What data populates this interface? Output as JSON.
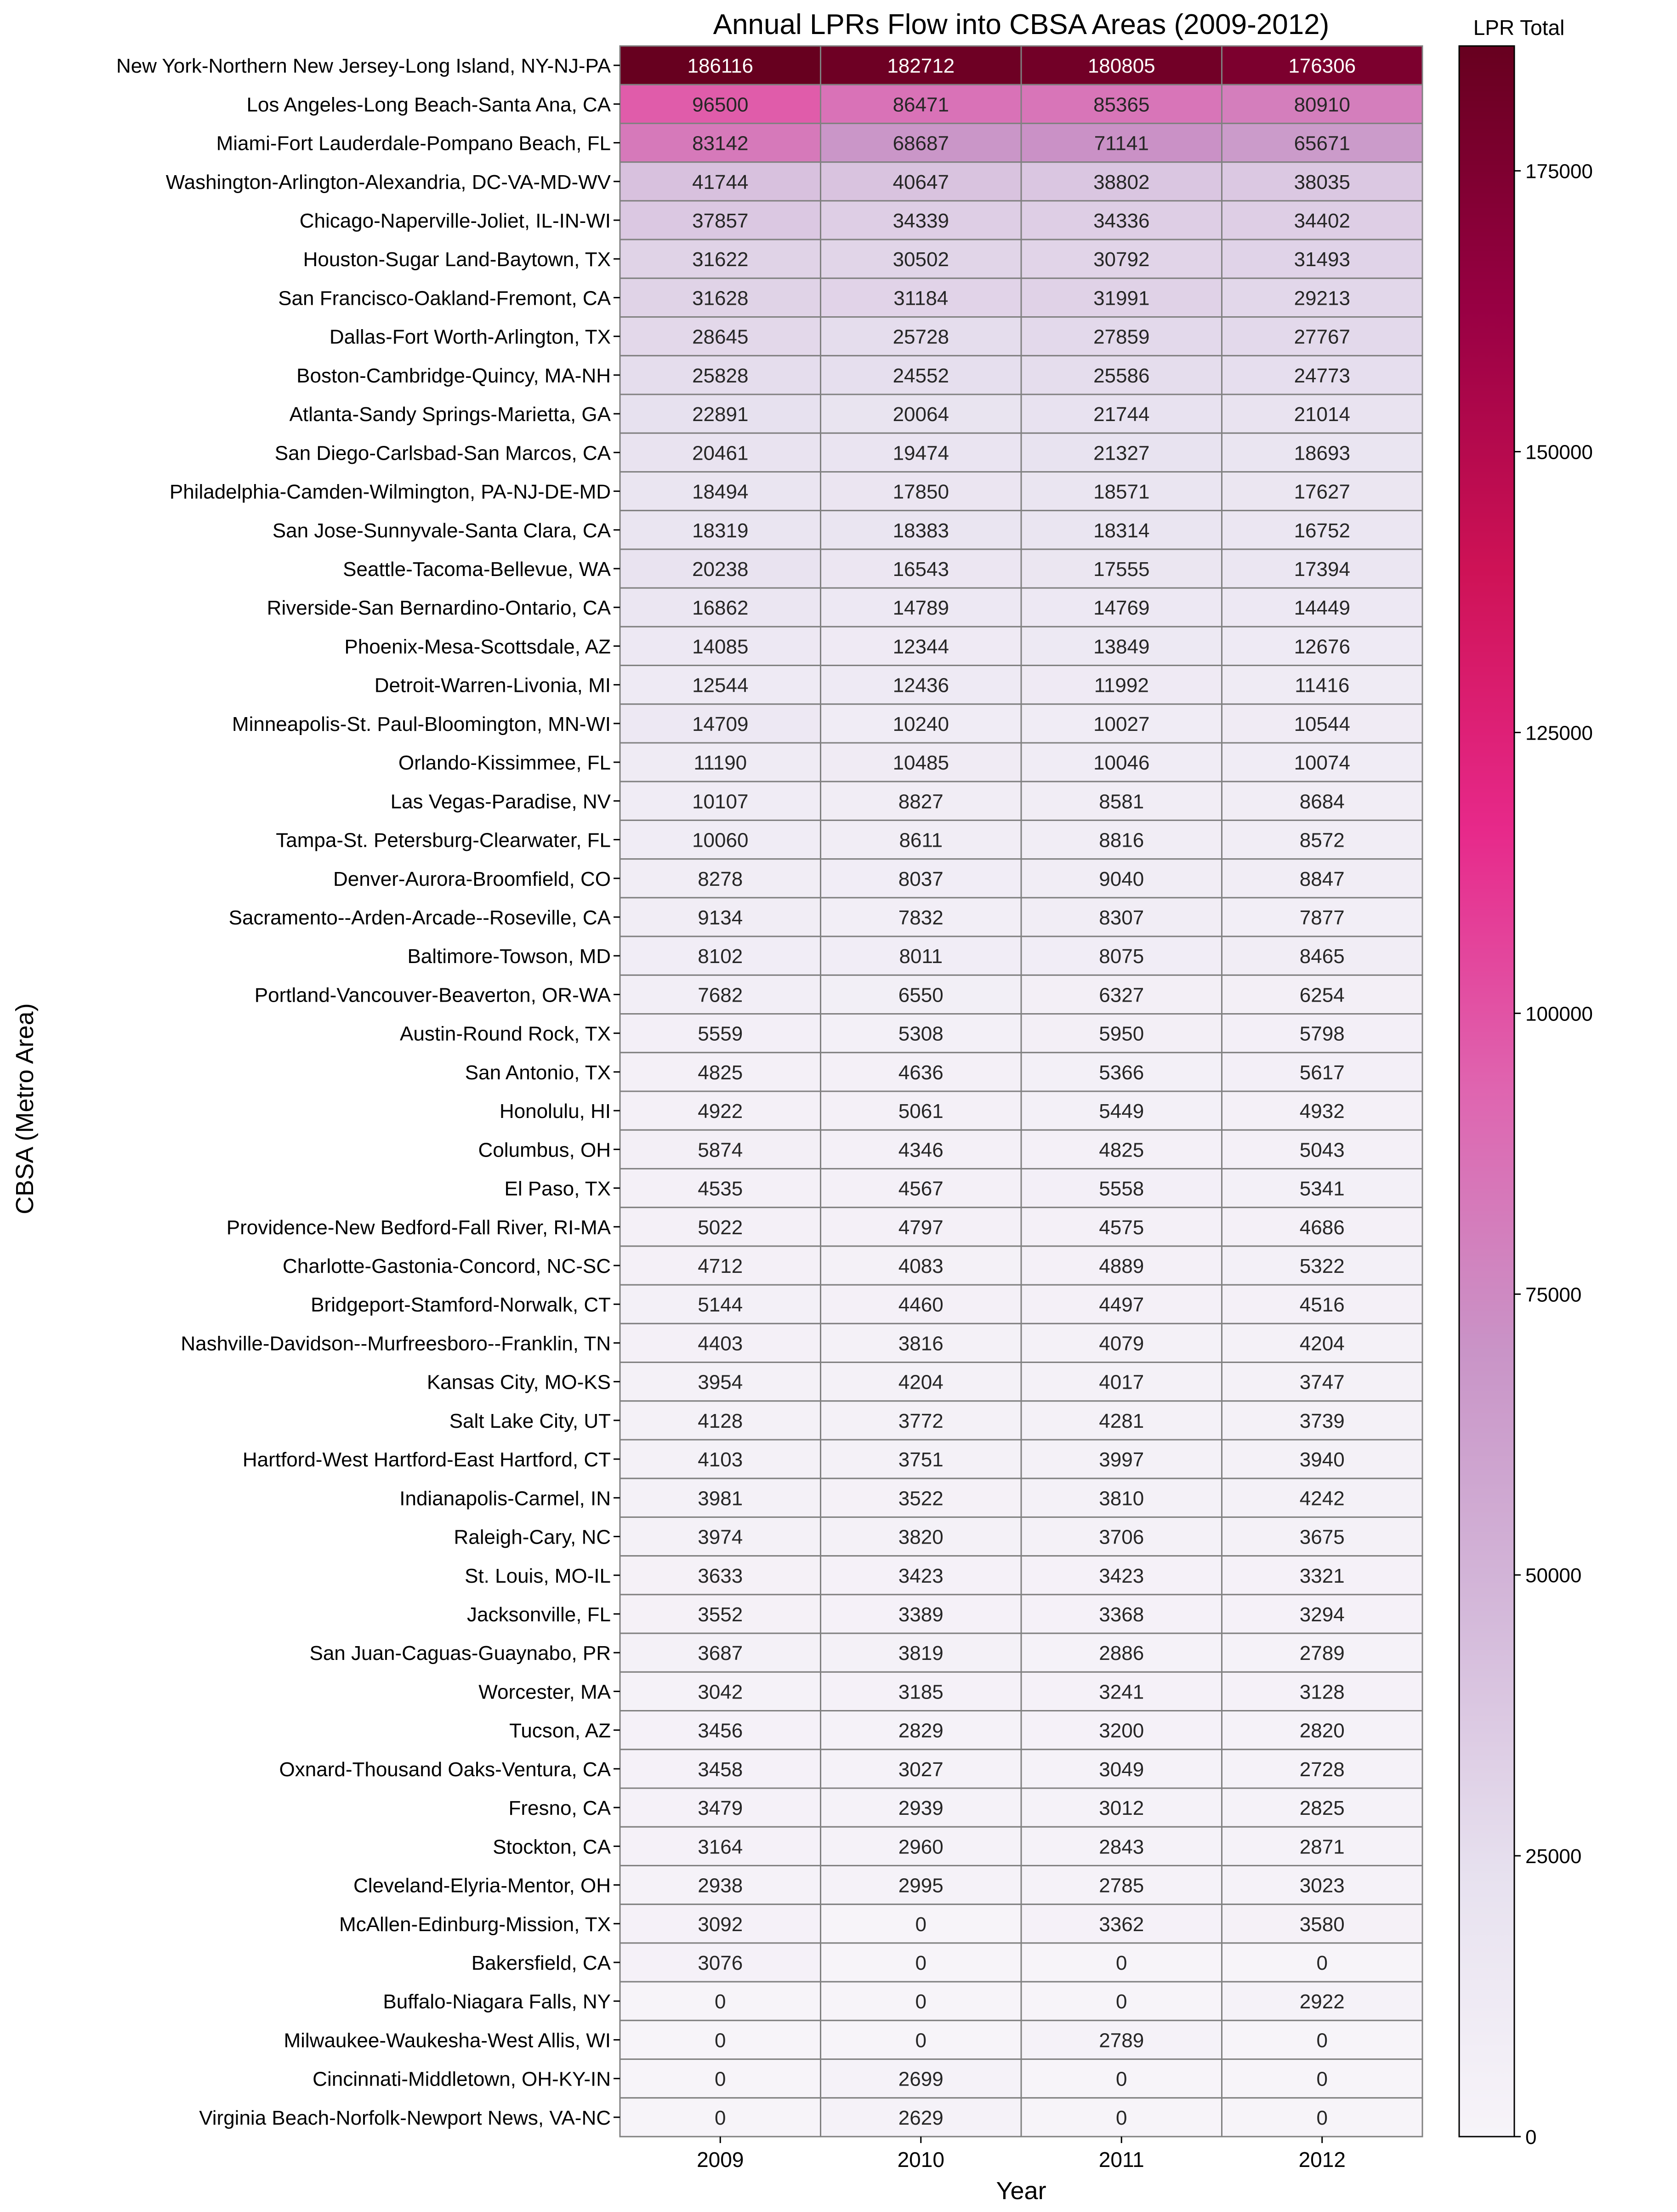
{
  "chart_data": {
    "type": "heatmap",
    "title": "Annual LPRs Flow into CBSA Areas (2009-2012)",
    "xlabel": "Year",
    "ylabel": "CBSA (Metro Area)",
    "x": [
      "2009",
      "2010",
      "2011",
      "2012"
    ],
    "y": [
      "New York-Northern New Jersey-Long Island, NY-NJ-PA",
      "Los Angeles-Long Beach-Santa Ana, CA",
      "Miami-Fort Lauderdale-Pompano Beach, FL",
      "Washington-Arlington-Alexandria, DC-VA-MD-WV",
      "Chicago-Naperville-Joliet, IL-IN-WI",
      "Houston-Sugar Land-Baytown, TX",
      "San Francisco-Oakland-Fremont, CA",
      "Dallas-Fort Worth-Arlington, TX",
      "Boston-Cambridge-Quincy, MA-NH",
      "Atlanta-Sandy Springs-Marietta, GA",
      "San Diego-Carlsbad-San Marcos, CA",
      "Philadelphia-Camden-Wilmington, PA-NJ-DE-MD",
      "San Jose-Sunnyvale-Santa Clara, CA",
      "Seattle-Tacoma-Bellevue, WA",
      "Riverside-San Bernardino-Ontario, CA",
      "Phoenix-Mesa-Scottsdale, AZ",
      "Detroit-Warren-Livonia, MI",
      "Minneapolis-St. Paul-Bloomington, MN-WI",
      "Orlando-Kissimmee, FL",
      "Las Vegas-Paradise, NV",
      "Tampa-St. Petersburg-Clearwater, FL",
      "Denver-Aurora-Broomfield, CO",
      "Sacramento--Arden-Arcade--Roseville, CA",
      "Baltimore-Towson, MD",
      "Portland-Vancouver-Beaverton, OR-WA",
      "Austin-Round Rock, TX",
      "San Antonio, TX",
      "Honolulu, HI",
      "Columbus, OH",
      "El Paso, TX",
      "Providence-New Bedford-Fall River, RI-MA",
      "Charlotte-Gastonia-Concord, NC-SC",
      "Bridgeport-Stamford-Norwalk, CT",
      "Nashville-Davidson--Murfreesboro--Franklin, TN",
      "Kansas City, MO-KS",
      "Salt Lake City, UT",
      "Hartford-West Hartford-East Hartford, CT",
      "Indianapolis-Carmel, IN",
      "Raleigh-Cary, NC",
      "St. Louis, MO-IL",
      "Jacksonville, FL",
      "San Juan-Caguas-Guaynabo, PR",
      "Worcester, MA",
      "Tucson, AZ",
      "Oxnard-Thousand Oaks-Ventura, CA",
      "Fresno, CA",
      "Stockton, CA",
      "Cleveland-Elyria-Mentor, OH",
      "McAllen-Edinburg-Mission, TX",
      "Bakersfield, CA",
      "Buffalo-Niagara Falls, NY",
      "Milwaukee-Waukesha-West Allis, WI",
      "Cincinnati-Middletown, OH-KY-IN",
      "Virginia Beach-Norfolk-Newport News, VA-NC"
    ],
    "values": [
      [
        186116,
        182712,
        180805,
        176306
      ],
      [
        96500,
        86471,
        85365,
        80910
      ],
      [
        83142,
        68687,
        71141,
        65671
      ],
      [
        41744,
        40647,
        38802,
        38035
      ],
      [
        37857,
        34339,
        34336,
        34402
      ],
      [
        31622,
        30502,
        30792,
        31493
      ],
      [
        31628,
        31184,
        31991,
        29213
      ],
      [
        28645,
        25728,
        27859,
        27767
      ],
      [
        25828,
        24552,
        25586,
        24773
      ],
      [
        22891,
        20064,
        21744,
        21014
      ],
      [
        20461,
        19474,
        21327,
        18693
      ],
      [
        18494,
        17850,
        18571,
        17627
      ],
      [
        18319,
        18383,
        18314,
        16752
      ],
      [
        20238,
        16543,
        17555,
        17394
      ],
      [
        16862,
        14789,
        14769,
        14449
      ],
      [
        14085,
        12344,
        13849,
        12676
      ],
      [
        12544,
        12436,
        11992,
        11416
      ],
      [
        14709,
        10240,
        10027,
        10544
      ],
      [
        11190,
        10485,
        10046,
        10074
      ],
      [
        10107,
        8827,
        8581,
        8684
      ],
      [
        10060,
        8611,
        8816,
        8572
      ],
      [
        8278,
        8037,
        9040,
        8847
      ],
      [
        9134,
        7832,
        8307,
        7877
      ],
      [
        8102,
        8011,
        8075,
        8465
      ],
      [
        7682,
        6550,
        6327,
        6254
      ],
      [
        5559,
        5308,
        5950,
        5798
      ],
      [
        4825,
        4636,
        5366,
        5617
      ],
      [
        4922,
        5061,
        5449,
        4932
      ],
      [
        5874,
        4346,
        4825,
        5043
      ],
      [
        4535,
        4567,
        5558,
        5341
      ],
      [
        5022,
        4797,
        4575,
        4686
      ],
      [
        4712,
        4083,
        4889,
        5322
      ],
      [
        5144,
        4460,
        4497,
        4516
      ],
      [
        4403,
        3816,
        4079,
        4204
      ],
      [
        3954,
        4204,
        4017,
        3747
      ],
      [
        4128,
        3772,
        4281,
        3739
      ],
      [
        4103,
        3751,
        3997,
        3940
      ],
      [
        3981,
        3522,
        3810,
        4242
      ],
      [
        3974,
        3820,
        3706,
        3675
      ],
      [
        3633,
        3423,
        3423,
        3321
      ],
      [
        3552,
        3389,
        3368,
        3294
      ],
      [
        3687,
        3819,
        2886,
        2789
      ],
      [
        3042,
        3185,
        3241,
        3128
      ],
      [
        3456,
        2829,
        3200,
        2820
      ],
      [
        3458,
        3027,
        3049,
        2728
      ],
      [
        3479,
        2939,
        3012,
        2825
      ],
      [
        3164,
        2960,
        2843,
        2871
      ],
      [
        2938,
        2995,
        2785,
        3023
      ],
      [
        3092,
        0,
        3362,
        3580
      ],
      [
        3076,
        0,
        0,
        0
      ],
      [
        0,
        0,
        0,
        2922
      ],
      [
        0,
        0,
        2789,
        0
      ],
      [
        0,
        2699,
        0,
        0
      ],
      [
        0,
        2629,
        0,
        0
      ]
    ],
    "colorbar": {
      "label": "LPR Total",
      "range": [
        0,
        186116
      ],
      "ticks": [
        0,
        25000,
        50000,
        75000,
        100000,
        125000,
        150000,
        175000
      ],
      "colormap": [
        "#f7f4f9",
        "#e7e1ef",
        "#d4b9da",
        "#c994c7",
        "#df65b0",
        "#e7298a",
        "#ce1256",
        "#980043",
        "#67001f"
      ]
    },
    "grid": false,
    "cell_border_color": "#808080"
  }
}
